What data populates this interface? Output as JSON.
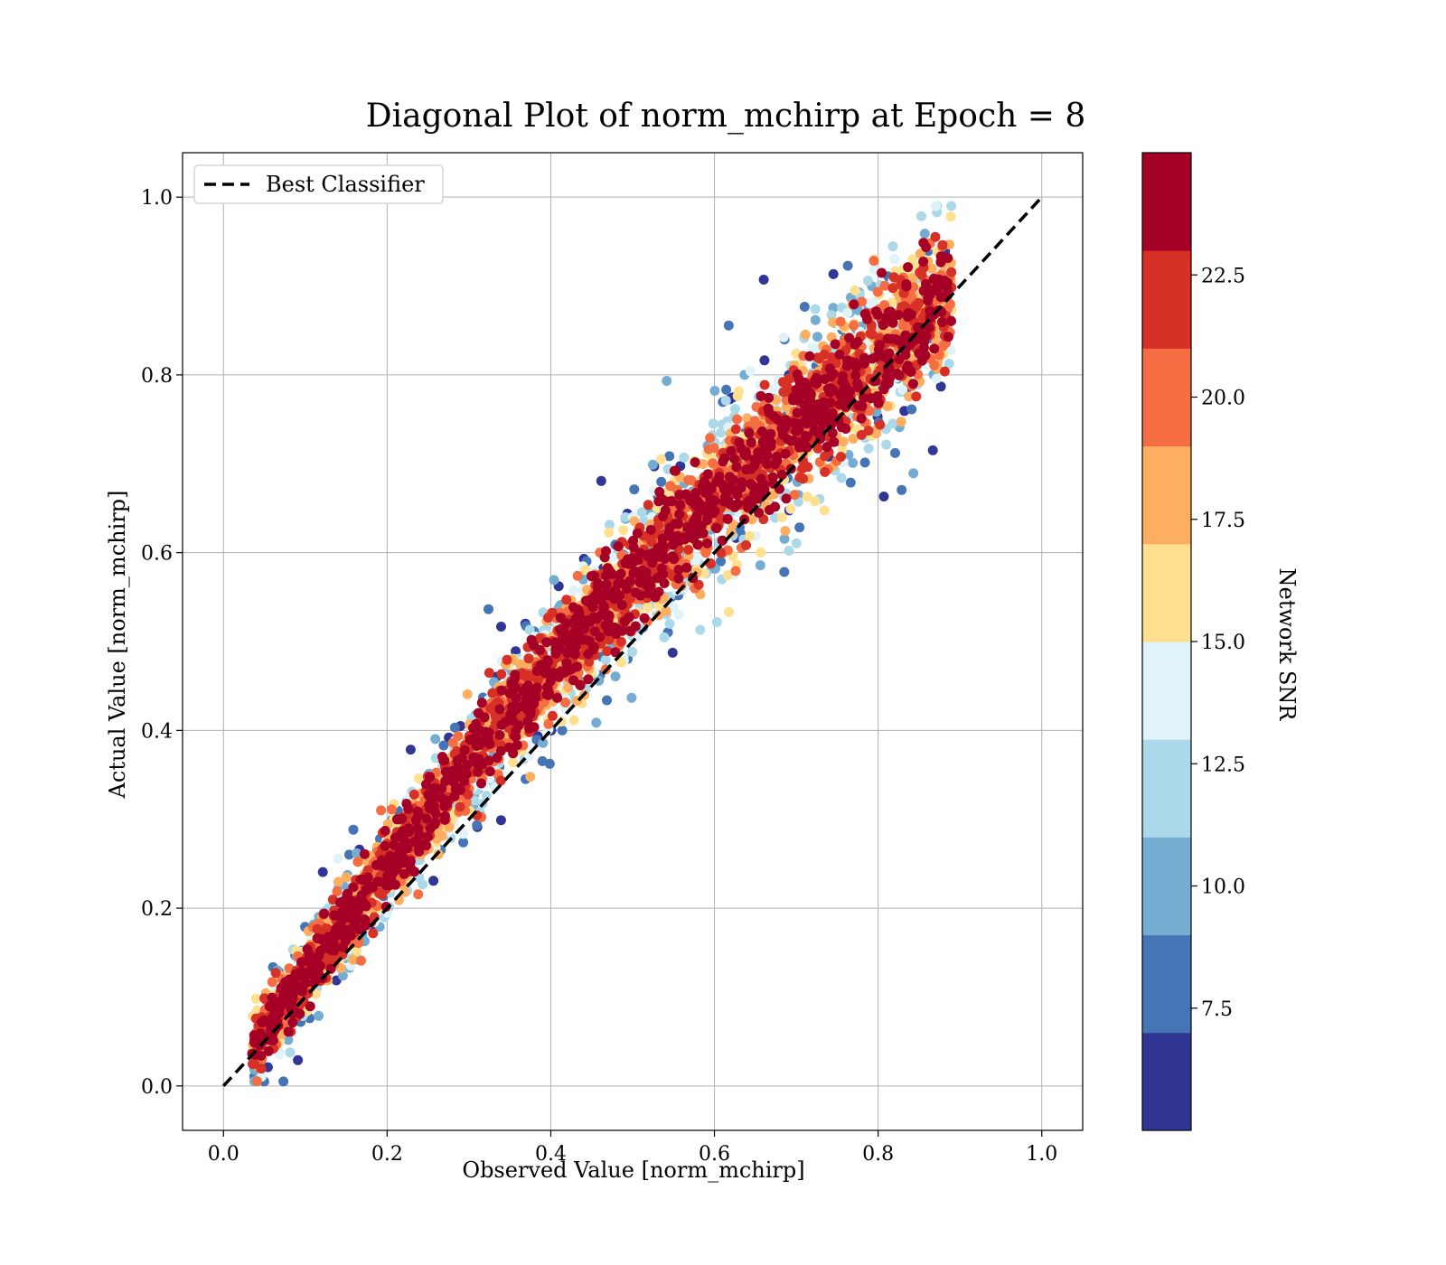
{
  "chart_data": {
    "type": "scatter",
    "title": "Diagonal Plot of norm_mchirp at Epoch = 8",
    "xlabel": "Observed Value [norm_mchirp]",
    "ylabel": "Actual Value [norm_mchirp]",
    "xlim": [
      -0.05,
      1.05
    ],
    "ylim": [
      -0.05,
      1.05
    ],
    "x_ticks": [
      "0.0",
      "0.2",
      "0.4",
      "0.6",
      "0.8",
      "1.0"
    ],
    "y_ticks": [
      "0.0",
      "0.2",
      "0.4",
      "0.6",
      "0.8",
      "1.0"
    ],
    "grid": true,
    "legend": {
      "position": "top-left",
      "entries": [
        "Best Classifier"
      ]
    },
    "reference_line": {
      "name": "Best Classifier",
      "style": "dashed",
      "color": "#000000",
      "x": [
        0.0,
        1.0
      ],
      "y": [
        0.0,
        1.0
      ]
    },
    "colorbar": {
      "label": "Network SNR",
      "range": [
        5.0,
        25.0
      ],
      "ticks": [
        "7.5",
        "10.0",
        "12.5",
        "15.0",
        "17.5",
        "20.0",
        "22.5"
      ],
      "bands": [
        "#313695",
        "#4575b4",
        "#74add1",
        "#abd9e9",
        "#e0f3f8",
        "#fee090",
        "#fdae61",
        "#f46d43",
        "#d73027",
        "#a50026"
      ]
    },
    "series_description_colors": {
      "low_snr": "#313695",
      "high_snr": "#a50026"
    }
  }
}
